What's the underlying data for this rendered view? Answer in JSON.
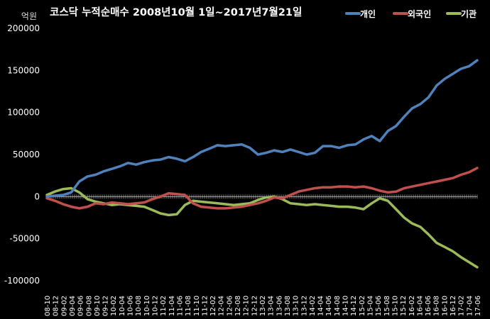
{
  "chart_data": {
    "type": "line",
    "title": "코스닥 누적순매수 2008년10월 1일~2017년7월21일",
    "ylabel": "억원",
    "ylim": [
      -100000,
      200000
    ],
    "yticks": [
      200000,
      150000,
      100000,
      50000,
      0,
      -50000,
      -100000
    ],
    "xticks": [
      "08-10",
      "09-02",
      "09-06",
      "09-10",
      "10-02",
      "10-06",
      "10-10",
      "11-02",
      "11-06",
      "11-10",
      "12-02",
      "12-06",
      "12-10",
      "13-02",
      "13-06",
      "13-10",
      "14-02",
      "14-06",
      "14-10",
      "15-02",
      "15-06",
      "15-10",
      "16-02",
      "16-06",
      "16-10",
      "17-02",
      "17-06"
    ],
    "xtick_labels": [
      "08-10",
      "08-12",
      "09-02",
      "09-04",
      "09-06",
      "09-08",
      "09-10",
      "09-12",
      "10-02",
      "10-04",
      "10-06",
      "10-08",
      "10-10",
      "10-12",
      "11-02",
      "11-04",
      "11-06",
      "11-08",
      "11-10",
      "11-12",
      "12-02",
      "12-04",
      "12-06",
      "12-08",
      "12-10",
      "12-12",
      "13-02",
      "13-04",
      "13-06",
      "13-08",
      "13-10",
      "13-12",
      "14-02",
      "14-04",
      "14-06",
      "14-08",
      "14-10",
      "14-12",
      "15-02",
      "15-04",
      "15-06",
      "15-08",
      "15-10",
      "15-12",
      "16-02",
      "16-04",
      "16-06",
      "16-08",
      "16-10",
      "16-12",
      "17-02",
      "17-04",
      "17-06"
    ],
    "grid": false,
    "legend_position": "top-right",
    "x_months": [
      "2008-10",
      "2008-12",
      "2009-02",
      "2009-04",
      "2009-06",
      "2009-08",
      "2009-10",
      "2009-12",
      "2010-02",
      "2010-04",
      "2010-06",
      "2010-08",
      "2010-10",
      "2010-12",
      "2011-02",
      "2011-04",
      "2011-06",
      "2011-08",
      "2011-10",
      "2011-12",
      "2012-02",
      "2012-04",
      "2012-06",
      "2012-08",
      "2012-10",
      "2012-12",
      "2013-02",
      "2013-04",
      "2013-06",
      "2013-08",
      "2013-10",
      "2013-12",
      "2014-02",
      "2014-04",
      "2014-06",
      "2014-08",
      "2014-10",
      "2014-12",
      "2015-02",
      "2015-04",
      "2015-06",
      "2015-08",
      "2015-10",
      "2015-12",
      "2016-02",
      "2016-04",
      "2016-06",
      "2016-08",
      "2016-10",
      "2016-12",
      "2017-02",
      "2017-04",
      "2017-06",
      "2017-07"
    ],
    "series": [
      {
        "name": "개인",
        "color": "#4f81bd",
        "values": [
          0,
          1000,
          2000,
          5000,
          18000,
          24000,
          26000,
          30000,
          33000,
          36000,
          40000,
          38000,
          41000,
          43000,
          44000,
          47000,
          45000,
          42000,
          47000,
          53000,
          57000,
          61000,
          60000,
          61000,
          62000,
          58000,
          50000,
          52000,
          55000,
          53000,
          56000,
          53000,
          50000,
          52000,
          60000,
          60000,
          58000,
          61000,
          62000,
          68000,
          72000,
          66000,
          78000,
          84000,
          95000,
          105000,
          110000,
          118000,
          132000,
          140000,
          146000,
          152000,
          155000,
          162000
        ]
      },
      {
        "name": "외국인",
        "color": "#c0504d",
        "values": [
          -2000,
          -5000,
          -9000,
          -12000,
          -14000,
          -12000,
          -8000,
          -9000,
          -7000,
          -8000,
          -9000,
          -8000,
          -7000,
          -3000,
          0,
          4000,
          3000,
          2000,
          -8000,
          -12000,
          -13000,
          -14000,
          -14000,
          -13000,
          -12000,
          -10000,
          -8000,
          -5000,
          -1000,
          -2000,
          2000,
          6000,
          8000,
          10000,
          11000,
          11000,
          12000,
          12000,
          11000,
          12000,
          10000,
          7000,
          5000,
          6000,
          10000,
          12000,
          14000,
          16000,
          18000,
          20000,
          22000,
          26000,
          29000,
          34000
        ]
      },
      {
        "name": "기관",
        "color": "#9bbb59",
        "values": [
          2000,
          6000,
          9000,
          10000,
          5000,
          -3000,
          -6000,
          -8000,
          -10000,
          -9000,
          -10000,
          -11000,
          -12000,
          -16000,
          -20000,
          -22000,
          -21000,
          -10000,
          -5000,
          -6000,
          -7000,
          -8000,
          -9000,
          -10000,
          -9000,
          -8000,
          -4000,
          -1000,
          0,
          -3000,
          -8000,
          -9000,
          -10000,
          -9000,
          -10000,
          -11000,
          -12000,
          -12000,
          -13000,
          -15000,
          -8000,
          -2000,
          -5000,
          -15000,
          -25000,
          -32000,
          -36000,
          -45000,
          -55000,
          -60000,
          -65000,
          -72000,
          -78000,
          -84000
        ]
      }
    ]
  }
}
